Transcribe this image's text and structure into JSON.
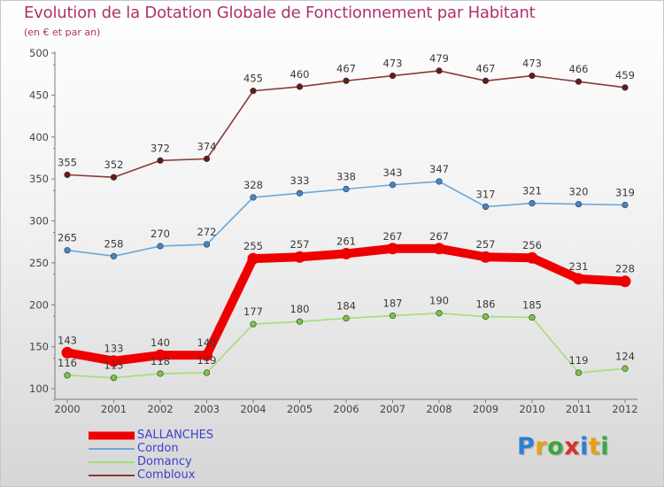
{
  "header": {
    "title": "Evolution de la Dotation Globale de Fonctionnement par Habitant",
    "subtitle": "(en € et par an)"
  },
  "logo": {
    "text": "Proxiti",
    "letters": [
      {
        "ch": "P",
        "color": "#2e7fd0"
      },
      {
        "ch": "r",
        "color": "#e8a010"
      },
      {
        "ch": "o",
        "color": "#3aa83a"
      },
      {
        "ch": "x",
        "color": "#d83030"
      },
      {
        "ch": "i",
        "color": "#2e7fd0"
      },
      {
        "ch": "t",
        "color": "#e8a010"
      },
      {
        "ch": "i",
        "color": "#3aa83a"
      }
    ]
  },
  "chart_data": {
    "type": "line",
    "title": "Evolution de la Dotation Globale de Fonctionnement par Habitant",
    "subtitle": "(en € et par an)",
    "xlabel": "",
    "ylabel": "",
    "categories": [
      "2000",
      "2001",
      "2002",
      "2003",
      "2004",
      "2005",
      "2006",
      "2007",
      "2008",
      "2009",
      "2010",
      "2011",
      "2012"
    ],
    "ylim": [
      100,
      500
    ],
    "yticks": [
      100,
      150,
      200,
      250,
      300,
      350,
      400,
      450,
      500
    ],
    "grid": false,
    "legend_position": "bottom-left",
    "series": [
      {
        "name": "SALLANCHES",
        "color": "#ee0000",
        "marker": "#ee0000",
        "emphasis": true,
        "values": [
          143,
          133,
          140,
          140,
          255,
          257,
          261,
          267,
          267,
          257,
          256,
          231,
          228
        ]
      },
      {
        "name": "Cordon",
        "color": "#6aa8d8",
        "marker": "#3f88cc",
        "emphasis": false,
        "values": [
          265,
          258,
          270,
          272,
          328,
          333,
          338,
          343,
          347,
          317,
          321,
          320,
          319
        ]
      },
      {
        "name": "Domancy",
        "color": "#a6dc78",
        "marker": "#78c840",
        "emphasis": false,
        "values": [
          116,
          113,
          118,
          119,
          177,
          180,
          184,
          187,
          190,
          186,
          185,
          119,
          124
        ]
      },
      {
        "name": "Combloux",
        "color": "#8a3a3a",
        "marker": "#6a1818",
        "emphasis": false,
        "values": [
          355,
          352,
          372,
          374,
          455,
          460,
          467,
          473,
          479,
          467,
          473,
          466,
          459
        ]
      }
    ]
  }
}
